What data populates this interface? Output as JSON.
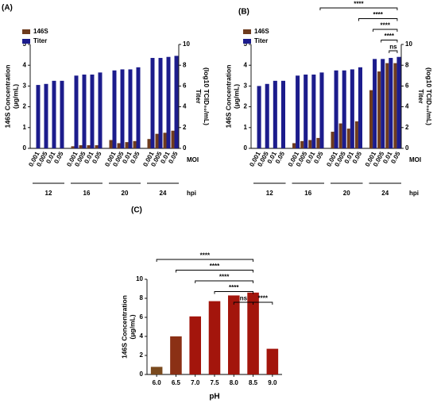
{
  "chart_data": [
    {
      "type": "bar",
      "panel": "(A)",
      "categories": [
        "0.001",
        "0.005",
        "0.01",
        "0.05",
        "0.001",
        "0.005",
        "0.01",
        "0.05",
        "0.001",
        "0.005",
        "0.01",
        "0.05",
        "0.001",
        "0.005",
        "0.01",
        "0.05"
      ],
      "groups": [
        "12",
        "16",
        "20",
        "24"
      ],
      "category_axis_label": "MOI",
      "group_axis_label": "hpi",
      "ylabel": [
        "146S Concentration",
        "(μg/mL)"
      ],
      "y2label": [
        "Titer",
        "(log10 TCID₅₀/mL)"
      ],
      "ylim": [
        0,
        5
      ],
      "yticks": [
        0,
        1,
        2,
        3,
        4,
        5
      ],
      "y2lim": [
        0,
        10
      ],
      "y2ticks": [
        0,
        2,
        4,
        6,
        8,
        10
      ],
      "legend": "upper left",
      "series": [
        {
          "name": "146S",
          "color": "#6e3b1e",
          "values": [
            0,
            0,
            0,
            0,
            0.1,
            0.15,
            0.15,
            0.15,
            0.4,
            0.25,
            0.3,
            0.35,
            0.45,
            0.7,
            0.75,
            0.85
          ]
        },
        {
          "name": "Titer",
          "color": "#1c1c8c",
          "axis": "y2",
          "values": [
            6.1,
            6.2,
            6.5,
            6.5,
            7.0,
            7.1,
            7.1,
            7.3,
            7.5,
            7.6,
            7.6,
            7.8,
            8.7,
            8.7,
            8.8,
            8.9
          ]
        }
      ]
    },
    {
      "type": "bar",
      "panel": "(B)",
      "categories": [
        "0.001",
        "0.005",
        "0.01",
        "0.05",
        "0.001",
        "0.005",
        "0.01",
        "0.05",
        "0.001",
        "0.005",
        "0.01",
        "0.05",
        "0.001",
        "0.005",
        "0.01",
        "0.05"
      ],
      "groups": [
        "12",
        "16",
        "20",
        "24"
      ],
      "category_axis_label": "MOI",
      "group_axis_label": "hpi",
      "ylabel": [
        "146S Concentration",
        "(μg/mL)"
      ],
      "y2label": [
        "Titer",
        "(log10 TCID₅₀/mL)"
      ],
      "ylim": [
        0,
        5
      ],
      "yticks": [
        0,
        1,
        2,
        3,
        4,
        5
      ],
      "y2lim": [
        0,
        10
      ],
      "y2ticks": [
        0,
        2,
        4,
        6,
        8,
        10
      ],
      "legend": "upper left",
      "series": [
        {
          "name": "146S",
          "color": "#6e3b1e",
          "values": [
            0,
            0,
            0,
            0,
            0.25,
            0.35,
            0.4,
            0.5,
            0.8,
            1.2,
            0.95,
            1.3,
            2.8,
            3.7,
            4.1,
            4.1
          ]
        },
        {
          "name": "Titer",
          "color": "#1c1c8c",
          "axis": "y2",
          "values": [
            6.0,
            6.2,
            6.5,
            6.5,
            7.0,
            7.1,
            7.1,
            7.3,
            7.5,
            7.5,
            7.6,
            7.8,
            8.6,
            8.6,
            8.7,
            8.8
          ]
        }
      ],
      "comparisons": [
        {
          "label": "****",
          "from": 7,
          "to": 15
        },
        {
          "label": "****",
          "from": 11,
          "to": 15
        },
        {
          "label": "****",
          "from": 12,
          "to": 15
        },
        {
          "label": "****",
          "from": 13,
          "to": 15
        },
        {
          "label": "ns",
          "from": 14,
          "to": 15
        }
      ]
    },
    {
      "type": "bar",
      "panel": "(C)",
      "categories": [
        "6.0",
        "6.5",
        "7.0",
        "7.5",
        "8.0",
        "8.5",
        "9.0"
      ],
      "xlabel": "pH",
      "ylabel": [
        "146S Concentration",
        "(μg/mL)"
      ],
      "ylim": [
        0,
        10
      ],
      "yticks": [
        0,
        2,
        4,
        6,
        8,
        10
      ],
      "values": [
        0.8,
        4.0,
        6.1,
        7.7,
        8.3,
        8.6,
        2.7
      ],
      "colors": [
        "#7a4a1e",
        "#8b3015",
        "#a3150c",
        "#a3150c",
        "#a3150c",
        "#a3150c",
        "#a3150c"
      ],
      "comparisons": [
        {
          "label": "****",
          "from": 0,
          "to": 5
        },
        {
          "label": "****",
          "from": 1,
          "to": 5
        },
        {
          "label": "****",
          "from": 2,
          "to": 5
        },
        {
          "label": "****",
          "from": 3,
          "to": 5
        },
        {
          "label": "ns",
          "from": 4,
          "to": 5
        },
        {
          "label": "****",
          "from": 5,
          "to": 6
        }
      ]
    }
  ]
}
